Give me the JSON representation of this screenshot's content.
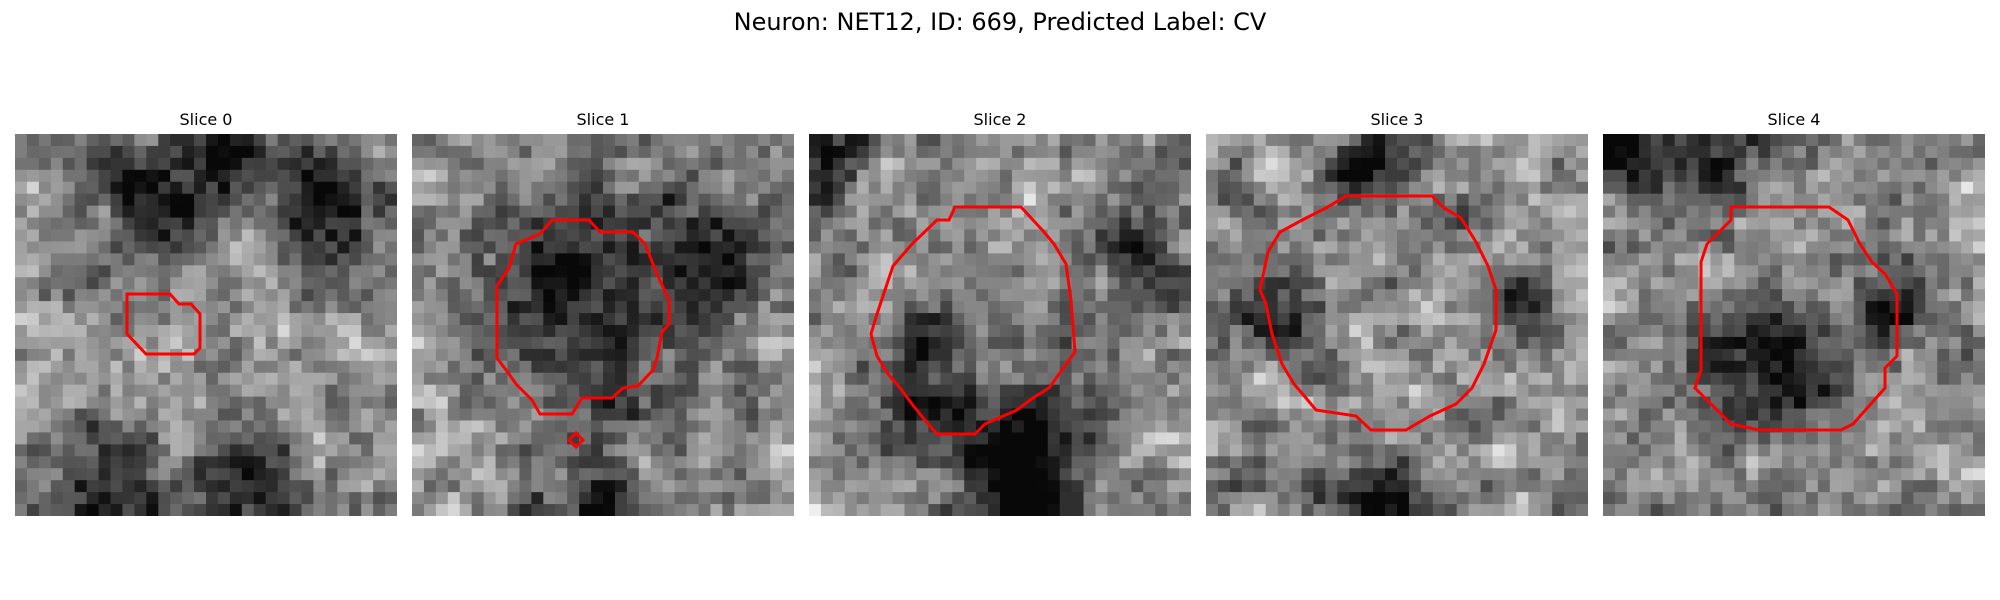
{
  "figure": {
    "title": "Neuron: NET12, ID: 669, Predicted Label: CV"
  },
  "slices": [
    {
      "label": "Slice 0",
      "seed": 11,
      "dark": [
        [
          0.35,
          0.18,
          0.12
        ],
        [
          0.28,
          0.95,
          0.1
        ],
        [
          0.55,
          0.05,
          0.08
        ],
        [
          0.8,
          0.2,
          0.1
        ],
        [
          0.62,
          0.93,
          0.1
        ]
      ]
    },
    {
      "label": "Slice 1",
      "seed": 23,
      "dark": [
        [
          0.47,
          0.45,
          0.2
        ],
        [
          0.8,
          0.28,
          0.08
        ],
        [
          0.5,
          0.97,
          0.08
        ]
      ]
    },
    {
      "label": "Slice 2",
      "seed": 37,
      "dark": [
        [
          0.3,
          0.67,
          0.12
        ],
        [
          0.6,
          0.8,
          0.12
        ],
        [
          0.85,
          0.32,
          0.09
        ],
        [
          0.05,
          0.07,
          0.08
        ],
        [
          0.55,
          0.95,
          0.09
        ]
      ]
    },
    {
      "label": "Slice 3",
      "seed": 41,
      "dark": [
        [
          0.45,
          0.05,
          0.08
        ],
        [
          0.47,
          0.97,
          0.1
        ],
        [
          0.18,
          0.5,
          0.07
        ],
        [
          0.82,
          0.45,
          0.06
        ]
      ]
    },
    {
      "label": "Slice 4",
      "seed": 53,
      "dark": [
        [
          0.42,
          0.62,
          0.13
        ],
        [
          0.05,
          0.05,
          0.09
        ],
        [
          0.75,
          0.45,
          0.07
        ],
        [
          0.3,
          0.1,
          0.07
        ]
      ]
    }
  ],
  "colors": {
    "contour": "#ff0000"
  }
}
